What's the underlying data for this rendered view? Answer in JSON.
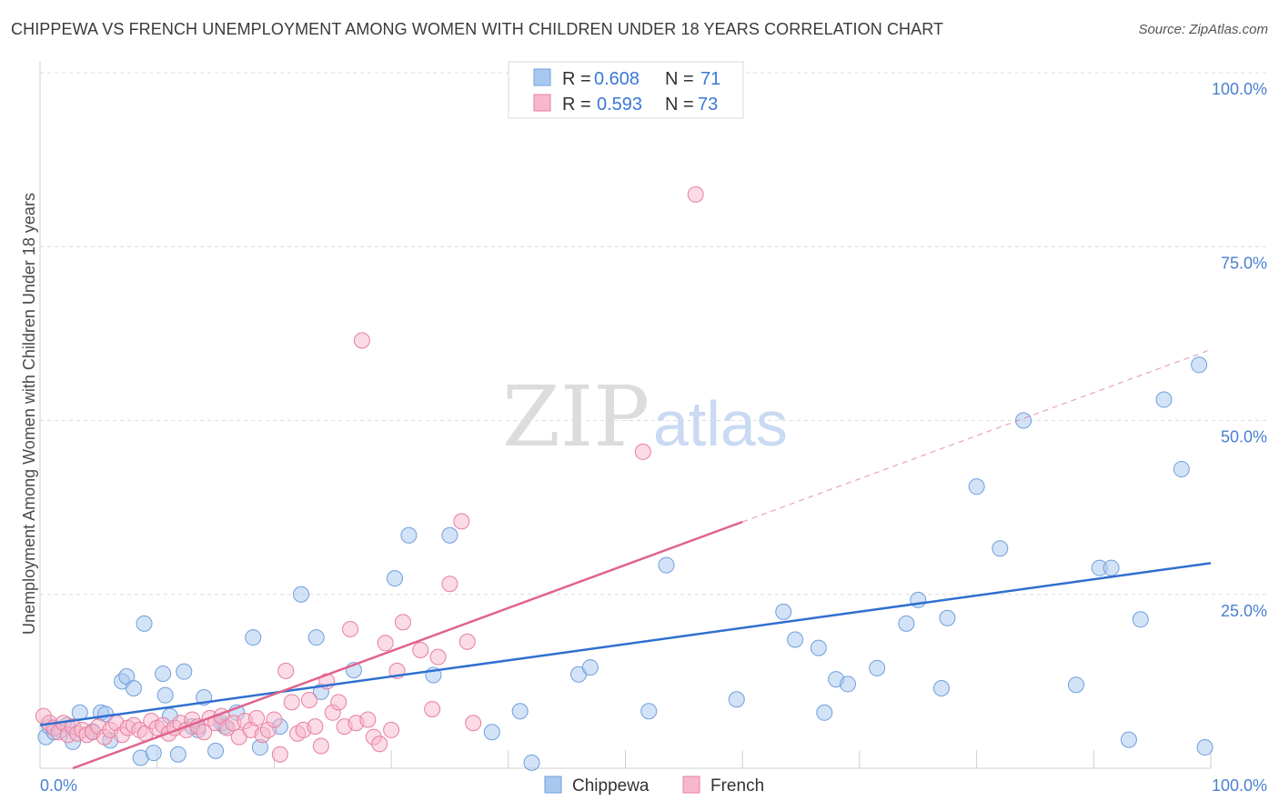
{
  "title": "CHIPPEWA VS FRENCH UNEMPLOYMENT AMONG WOMEN WITH CHILDREN UNDER 18 YEARS CORRELATION CHART",
  "source": "Source: ZipAtlas.com",
  "watermark": {
    "part1": "ZIP",
    "part2": "atlas"
  },
  "legend_top": [
    {
      "r_label": "R =",
      "r_value": "0.608",
      "n_label": "N =",
      "n_value": "71",
      "color": "#a8c8f0"
    },
    {
      "r_label": "R =",
      "r_value": "0.593",
      "n_label": "N =",
      "n_value": "73",
      "color": "#f8b8cc"
    }
  ],
  "chart_data": {
    "type": "scatter",
    "title": "CHIPPEWA VS FRENCH UNEMPLOYMENT AMONG WOMEN WITH CHILDREN UNDER 18 YEARS CORRELATION CHART",
    "xlabel": "",
    "ylabel": "Unemployment Among Women with Children Under 18 years",
    "xlim": [
      0,
      100
    ],
    "ylim": [
      0,
      100
    ],
    "x_tick_labels": [
      "0.0%",
      "100.0%"
    ],
    "y_tick_labels": [
      "25.0%",
      "50.0%",
      "75.0%",
      "100.0%"
    ],
    "y_ticks": [
      25,
      50,
      75,
      100
    ],
    "grid": true,
    "legend_position": "top-center",
    "series": [
      {
        "name": "Chippewa",
        "color": "#a8c8f0",
        "stroke": "#6f9fdc",
        "trend_color": "#2f6fd0",
        "trend": {
          "x": [
            0,
            100
          ],
          "y": [
            6.2,
            29.5
          ],
          "solid_until": 100
        },
        "points": [
          [
            0.5,
            4.5
          ],
          [
            0.8,
            6.0
          ],
          [
            1.2,
            5.2
          ],
          [
            1.8,
            5.5
          ],
          [
            2.3,
            6.2
          ],
          [
            2.8,
            3.8
          ],
          [
            3.4,
            8.0
          ],
          [
            4.5,
            5.3
          ],
          [
            5.2,
            8.0
          ],
          [
            5.6,
            7.8
          ],
          [
            6.0,
            4.0
          ],
          [
            7.0,
            12.5
          ],
          [
            7.4,
            13.2
          ],
          [
            8.0,
            11.5
          ],
          [
            8.6,
            1.5
          ],
          [
            8.9,
            20.8
          ],
          [
            9.7,
            2.2
          ],
          [
            10.5,
            13.6
          ],
          [
            10.7,
            10.5
          ],
          [
            11.1,
            7.5
          ],
          [
            11.8,
            2.0
          ],
          [
            12.3,
            13.9
          ],
          [
            13.0,
            6.0
          ],
          [
            13.5,
            5.5
          ],
          [
            14.0,
            10.2
          ],
          [
            15.0,
            2.5
          ],
          [
            15.5,
            6.5
          ],
          [
            15.8,
            6.0
          ],
          [
            16.8,
            8.0
          ],
          [
            18.2,
            18.8
          ],
          [
            18.8,
            3.0
          ],
          [
            20.5,
            6.0
          ],
          [
            22.3,
            25.0
          ],
          [
            23.6,
            18.8
          ],
          [
            24.0,
            11.0
          ],
          [
            26.8,
            14.1
          ],
          [
            30.3,
            27.3
          ],
          [
            31.5,
            33.5
          ],
          [
            33.6,
            13.4
          ],
          [
            35.0,
            33.5
          ],
          [
            38.6,
            5.2
          ],
          [
            41.0,
            8.2
          ],
          [
            42.0,
            0.8
          ],
          [
            46.0,
            13.5
          ],
          [
            47.0,
            14.5
          ],
          [
            52.0,
            8.2
          ],
          [
            53.5,
            29.2
          ],
          [
            59.5,
            9.9
          ],
          [
            63.5,
            22.5
          ],
          [
            64.5,
            18.5
          ],
          [
            66.5,
            17.3
          ],
          [
            67.0,
            8.0
          ],
          [
            68.0,
            12.8
          ],
          [
            69.0,
            12.1
          ],
          [
            71.5,
            14.4
          ],
          [
            74.0,
            20.8
          ],
          [
            75.0,
            24.2
          ],
          [
            77.0,
            11.5
          ],
          [
            77.5,
            21.6
          ],
          [
            80.0,
            40.5
          ],
          [
            82.0,
            31.6
          ],
          [
            84.0,
            50.0
          ],
          [
            88.5,
            12.0
          ],
          [
            90.5,
            28.8
          ],
          [
            91.5,
            28.8
          ],
          [
            93.0,
            4.1
          ],
          [
            94.0,
            21.4
          ],
          [
            96.0,
            53.0
          ],
          [
            97.5,
            43.0
          ],
          [
            99.0,
            58.0
          ],
          [
            99.5,
            3.0
          ]
        ]
      },
      {
        "name": "French",
        "color": "#f8b8cc",
        "stroke": "#e77fa0",
        "trend_color": "#e0628c",
        "trend": {
          "x": [
            2.8,
            100
          ],
          "y": [
            0,
            60.2
          ],
          "solid_until": 60
        },
        "points": [
          [
            0.3,
            7.5
          ],
          [
            0.8,
            6.5
          ],
          [
            1.2,
            5.8
          ],
          [
            1.6,
            5.2
          ],
          [
            2.0,
            6.5
          ],
          [
            2.4,
            4.8
          ],
          [
            2.8,
            6.0
          ],
          [
            3.2,
            5.0
          ],
          [
            3.6,
            5.5
          ],
          [
            4.0,
            4.8
          ],
          [
            4.5,
            5.2
          ],
          [
            5.0,
            6.0
          ],
          [
            5.5,
            4.5
          ],
          [
            6.0,
            5.5
          ],
          [
            6.5,
            6.5
          ],
          [
            7.0,
            4.8
          ],
          [
            7.5,
            5.8
          ],
          [
            8.0,
            6.2
          ],
          [
            8.5,
            5.5
          ],
          [
            9.0,
            5.0
          ],
          [
            9.5,
            6.8
          ],
          [
            10.0,
            5.8
          ],
          [
            10.5,
            6.2
          ],
          [
            11.0,
            5.0
          ],
          [
            11.5,
            5.8
          ],
          [
            12.0,
            6.5
          ],
          [
            12.5,
            5.5
          ],
          [
            13.0,
            7.0
          ],
          [
            13.5,
            6.0
          ],
          [
            14.0,
            5.2
          ],
          [
            14.5,
            7.2
          ],
          [
            15.0,
            6.5
          ],
          [
            15.5,
            7.5
          ],
          [
            16.0,
            5.8
          ],
          [
            16.5,
            6.5
          ],
          [
            17.0,
            4.5
          ],
          [
            17.5,
            6.8
          ],
          [
            18.0,
            5.5
          ],
          [
            18.5,
            7.2
          ],
          [
            19.0,
            4.8
          ],
          [
            19.5,
            5.5
          ],
          [
            20.0,
            7.0
          ],
          [
            20.5,
            2.0
          ],
          [
            21.0,
            14.0
          ],
          [
            21.5,
            9.5
          ],
          [
            22.0,
            5.0
          ],
          [
            22.5,
            5.5
          ],
          [
            23.0,
            9.8
          ],
          [
            23.5,
            6.0
          ],
          [
            24.0,
            3.2
          ],
          [
            24.5,
            12.5
          ],
          [
            25.0,
            8.0
          ],
          [
            25.5,
            9.5
          ],
          [
            26.0,
            6.0
          ],
          [
            26.5,
            20.0
          ],
          [
            27.0,
            6.5
          ],
          [
            27.5,
            61.5
          ],
          [
            28.0,
            7.0
          ],
          [
            28.5,
            4.5
          ],
          [
            29.0,
            3.5
          ],
          [
            29.5,
            18.0
          ],
          [
            30.0,
            5.5
          ],
          [
            30.5,
            14.0
          ],
          [
            31.0,
            21.0
          ],
          [
            32.5,
            17.0
          ],
          [
            33.5,
            8.5
          ],
          [
            34.0,
            16.0
          ],
          [
            35.0,
            26.5
          ],
          [
            36.0,
            35.5
          ],
          [
            36.5,
            18.2
          ],
          [
            37.0,
            6.5
          ],
          [
            51.5,
            45.5
          ],
          [
            56.0,
            82.5
          ]
        ]
      }
    ]
  }
}
